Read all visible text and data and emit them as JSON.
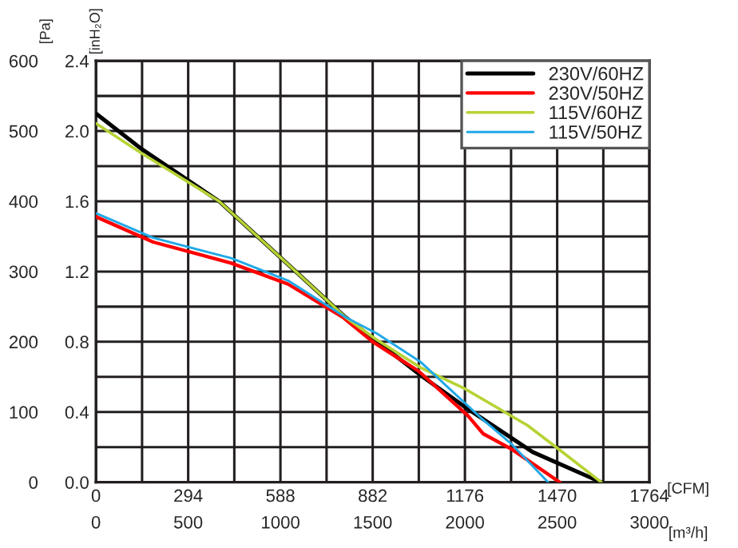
{
  "chart_data": {
    "type": "line",
    "xlabel": "[m³/h]",
    "ylabel": "[Pa]",
    "y2label": "[inH₂O]",
    "x2label": "[CFM]",
    "xlim": [
      0,
      3000
    ],
    "xticks": [
      0,
      500,
      1000,
      1500,
      2000,
      2500,
      3000
    ],
    "x2lim": [
      0,
      1764
    ],
    "x2ticks": [
      0,
      294,
      588,
      882,
      1176,
      1470,
      1764
    ],
    "ylim": [
      0,
      600
    ],
    "yticks": [
      0,
      100,
      200,
      300,
      400,
      500,
      600
    ],
    "y2lim": [
      0,
      2.4
    ],
    "y2ticks": [
      {
        "value": 0,
        "label": "0.0"
      },
      0.4,
      0.8,
      1.2,
      1.6,
      {
        "value": 2,
        "label": "2.0"
      },
      2.4
    ],
    "grid": true,
    "legend": "top right",
    "line_style": "solid",
    "marker": "none",
    "series": [
      {
        "name": "230V/60HZ",
        "color": "#000000",
        "x": [
          0,
          250,
          668,
          1083,
          1352,
          1510,
          1761,
          2001,
          2367,
          2739
        ],
        "values": [
          525,
          474,
          400,
          300,
          235,
          203,
          152,
          107,
          43,
          0
        ]
      },
      {
        "name": "230V/50HZ",
        "color": "#ff0000",
        "x": [
          0,
          310,
          733,
          1042,
          1338,
          1500,
          1750,
          2015,
          2099,
          2254,
          2514
        ],
        "values": [
          378,
          342,
          312,
          282,
          235,
          200,
          158,
          95,
          69,
          47,
          0
        ]
      },
      {
        "name": "115V/60HZ",
        "color": "#b5d334",
        "x": [
          0,
          250,
          668,
          1083,
          1352,
          1510,
          1761,
          2000,
          2339,
          2494,
          2739
        ],
        "values": [
          511,
          468,
          400,
          300,
          235,
          205,
          163,
          133,
          81,
          50,
          0
        ]
      },
      {
        "name": "115V/50HZ",
        "color": "#21a8e6",
        "x": [
          0,
          310,
          733,
          1042,
          1352,
          1521,
          1761,
          2085,
          2254,
          2451
        ],
        "values": [
          383,
          348,
          319,
          287,
          235,
          212,
          171,
          92,
          54,
          0
        ]
      }
    ]
  }
}
